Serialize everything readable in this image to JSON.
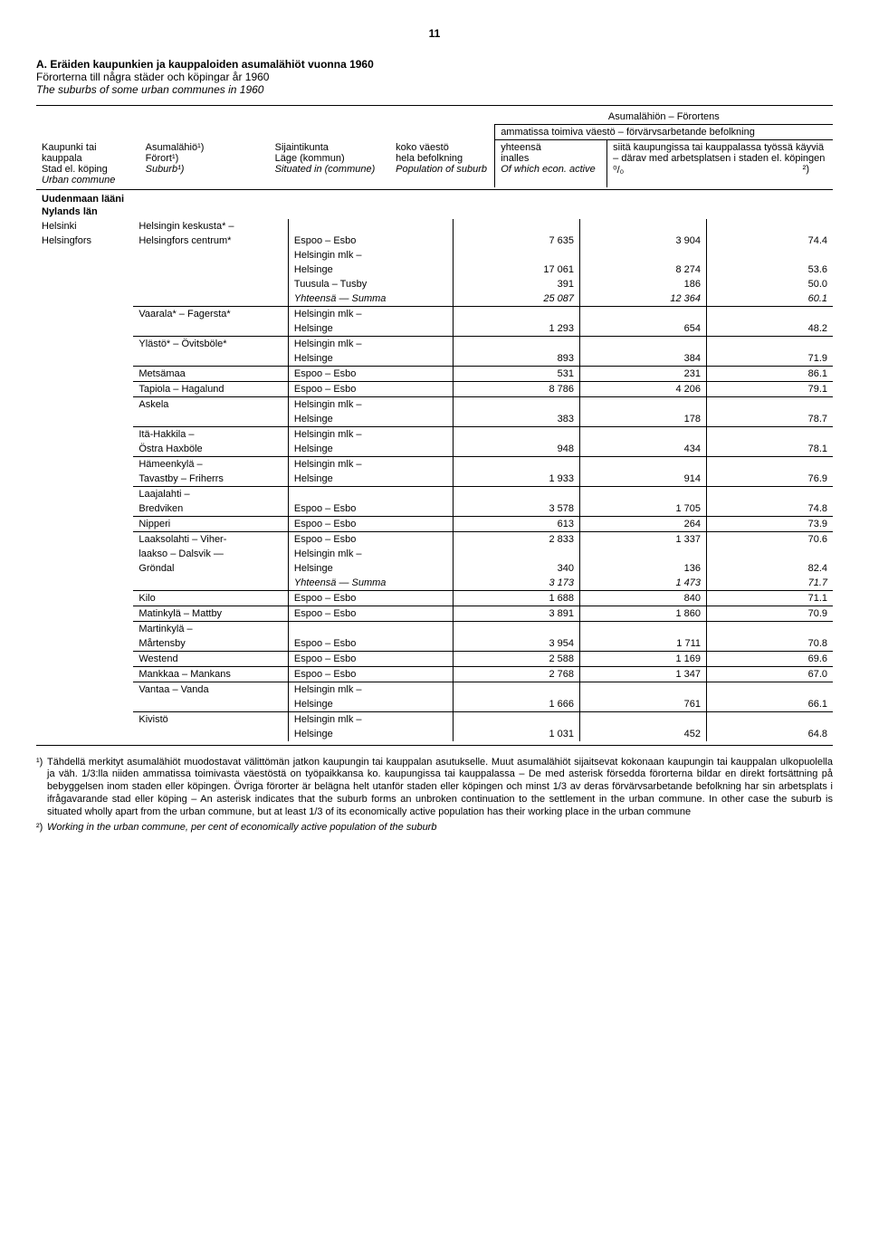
{
  "pageNumber": "11",
  "title": {
    "line1": "A. Eräiden kaupunkien ja kauppaloiden asumalähiöt vuonna 1960",
    "line2": "Förorterna till några städer och köpingar år 1960",
    "line3": "The suburbs of some urban communes in 1960"
  },
  "header": {
    "col1": {
      "a": "Kaupunki tai kauppala",
      "b": "Stad el. köping",
      "c": "Urban commune"
    },
    "col2": {
      "a": "Asumalähiö¹)",
      "b": "Förort¹)",
      "c": "Suburb¹)"
    },
    "col3": {
      "a": "Sijaintikunta",
      "b": "Läge (kommun)",
      "c": "Situated in (commune)"
    },
    "col4": {
      "a": "koko väestö",
      "b": "hela befolkning",
      "c": "Population of suburb"
    },
    "top_right": "Asumalähiön – Förortens",
    "col5_top": "ammatissa toimiva väestö – förvärvsarbetande befolkning",
    "col5": {
      "a": "yhteensä",
      "b": "inalles",
      "c": "Of which econ. active"
    },
    "col6": {
      "a": "siitä kaupungissa tai kauppalassa työssä käyviä – därav med arbetsplatsen i staden el. köpingen",
      "b": "⁰/₀",
      "c": "²)"
    }
  },
  "section": {
    "heading1": "Uudenmaan lääni",
    "heading2": "Nylands län"
  },
  "rows": [
    {
      "city": "Helsinki",
      "suburb": "Helsingin keskusta* –",
      "commune": "",
      "pop": "",
      "act": "",
      "pct": ""
    },
    {
      "city": "Helsingfors",
      "suburb": "Helsingfors centrum*",
      "commune": "Espoo – Esbo",
      "pop": "7 635",
      "act": "3 904",
      "pct": "74.4"
    },
    {
      "city": "",
      "suburb": "",
      "commune": "Helsingin mlk –",
      "pop": "",
      "act": "",
      "pct": ""
    },
    {
      "city": "",
      "suburb": "",
      "commune": "Helsinge",
      "pop": "17 061",
      "act": "8 274",
      "pct": "53.6"
    },
    {
      "city": "",
      "suburb": "",
      "commune": "Tuusula – Tusby",
      "pop": "391",
      "act": "186",
      "pct": "50.0"
    },
    {
      "city": "",
      "suburb": "",
      "commune": "Yhteensä — Summa",
      "pop": "25 087",
      "act": "12 364",
      "pct": "60.1",
      "ital": true
    },
    {
      "city": "",
      "suburb": "Vaarala* – Fagersta*",
      "commune": "Helsingin mlk –",
      "pop": "",
      "act": "",
      "pct": "",
      "top": true
    },
    {
      "city": "",
      "suburb": "",
      "commune": "Helsinge",
      "pop": "1 293",
      "act": "654",
      "pct": "48.2"
    },
    {
      "city": "",
      "suburb": "Ylästö* – Övitsböle*",
      "commune": "Helsingin mlk –",
      "pop": "",
      "act": "",
      "pct": "",
      "top": true
    },
    {
      "city": "",
      "suburb": "",
      "commune": "Helsinge",
      "pop": "893",
      "act": "384",
      "pct": "71.9"
    },
    {
      "city": "",
      "suburb": "Metsämaa",
      "commune": "Espoo – Esbo",
      "pop": "531",
      "act": "231",
      "pct": "86.1",
      "top": true
    },
    {
      "city": "",
      "suburb": "Tapiola – Hagalund",
      "commune": "Espoo – Esbo",
      "pop": "8 786",
      "act": "4 206",
      "pct": "79.1",
      "top": true
    },
    {
      "city": "",
      "suburb": "Askela",
      "commune": "Helsingin mlk –",
      "pop": "",
      "act": "",
      "pct": "",
      "top": true
    },
    {
      "city": "",
      "suburb": "",
      "commune": "Helsinge",
      "pop": "383",
      "act": "178",
      "pct": "78.7"
    },
    {
      "city": "",
      "suburb": "Itä-Hakkila –",
      "commune": "Helsingin mlk –",
      "pop": "",
      "act": "",
      "pct": "",
      "top": true
    },
    {
      "city": "",
      "suburb": "Östra Haxböle",
      "commune": "Helsinge",
      "pop": "948",
      "act": "434",
      "pct": "78.1"
    },
    {
      "city": "",
      "suburb": "Hämeenkylä –",
      "commune": "Helsingin mlk –",
      "pop": "",
      "act": "",
      "pct": "",
      "top": true
    },
    {
      "city": "",
      "suburb": "Tavastby – Friherrs",
      "commune": "Helsinge",
      "pop": "1 933",
      "act": "914",
      "pct": "76.9"
    },
    {
      "city": "",
      "suburb": "Laajalahti –",
      "commune": "",
      "pop": "",
      "act": "",
      "pct": "",
      "top": true
    },
    {
      "city": "",
      "suburb": "Bredviken",
      "commune": "Espoo – Esbo",
      "pop": "3 578",
      "act": "1 705",
      "pct": "74.8"
    },
    {
      "city": "",
      "suburb": "Nipperi",
      "commune": "Espoo – Esbo",
      "pop": "613",
      "act": "264",
      "pct": "73.9",
      "top": true
    },
    {
      "city": "",
      "suburb": "Laaksolahti – Viher-",
      "commune": "Espoo – Esbo",
      "pop": "2 833",
      "act": "1 337",
      "pct": "70.6",
      "top": true
    },
    {
      "city": "",
      "suburb": "laakso – Dalsvik —",
      "commune": "Helsingin mlk –",
      "pop": "",
      "act": "",
      "pct": ""
    },
    {
      "city": "",
      "suburb": "Gröndal",
      "commune": "Helsinge",
      "pop": "340",
      "act": "136",
      "pct": "82.4"
    },
    {
      "city": "",
      "suburb": "",
      "commune": "Yhteensä — Summa",
      "pop": "3 173",
      "act": "1 473",
      "pct": "71.7",
      "ital": true
    },
    {
      "city": "",
      "suburb": "Kilo",
      "commune": "Espoo – Esbo",
      "pop": "1 688",
      "act": "840",
      "pct": "71.1",
      "top": true
    },
    {
      "city": "",
      "suburb": "Matinkylä – Mattby",
      "commune": "Espoo – Esbo",
      "pop": "3 891",
      "act": "1 860",
      "pct": "70.9",
      "top": true
    },
    {
      "city": "",
      "suburb": "Martinkylä –",
      "commune": "",
      "pop": "",
      "act": "",
      "pct": "",
      "top": true
    },
    {
      "city": "",
      "suburb": "Mårtensby",
      "commune": "Espoo – Esbo",
      "pop": "3 954",
      "act": "1 711",
      "pct": "70.8"
    },
    {
      "city": "",
      "suburb": "Westend",
      "commune": "Espoo – Esbo",
      "pop": "2 588",
      "act": "1 169",
      "pct": "69.6",
      "top": true
    },
    {
      "city": "",
      "suburb": "Mankkaa – Mankans",
      "commune": "Espoo – Esbo",
      "pop": "2 768",
      "act": "1 347",
      "pct": "67.0",
      "top": true
    },
    {
      "city": "",
      "suburb": "Vantaa – Vanda",
      "commune": "Helsingin mlk –",
      "pop": "",
      "act": "",
      "pct": "",
      "top": true
    },
    {
      "city": "",
      "suburb": "",
      "commune": "Helsinge",
      "pop": "1 666",
      "act": "761",
      "pct": "66.1"
    },
    {
      "city": "",
      "suburb": "Kivistö",
      "commune": "Helsingin mlk –",
      "pop": "",
      "act": "",
      "pct": "",
      "top": true
    },
    {
      "city": "",
      "suburb": "",
      "commune": "Helsinge",
      "pop": "1 031",
      "act": "452",
      "pct": "64.8"
    }
  ],
  "footnotes": {
    "fn1_marker": "¹)",
    "fn1": "Tähdellä merkityt asumalähiöt muodostavat välittömän jatkon kaupungin tai kauppalan asutukselle. Muut asumalähiöt sijaitsevat kokonaan kaupungin tai kauppalan ulkopuolella ja väh. 1/3:lla niiden ammatissa toimivasta väestöstä on työpaikkansa ko. kaupungissa tai kauppalassa – De med asterisk försedda förorterna bildar en direkt fortsättning på bebyggelsen inom staden eller köpingen. Övriga förorter är belägna helt utanför staden eller köpingen och minst 1/3 av deras förvärvsarbetande befolkning har sin arbetsplats i ifrågavarande stad eller köping – An asterisk indicates that the suburb forms an unbroken continuation to the settlement in the urban commune. In other case the suburb is situated wholly apart from the urban commune, but at least 1/3 of its economically active population has their working place in the urban commune",
    "fn2_marker": "²)",
    "fn2": "Working in the urban commune, per cent of economically active population of the suburb"
  }
}
